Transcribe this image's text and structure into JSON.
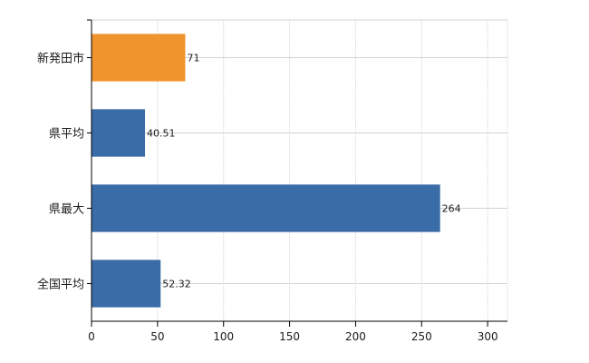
{
  "chart_data": {
    "type": "bar",
    "orientation": "horizontal",
    "categories": [
      "新発田市",
      "県平均",
      "県最大",
      "全国平均"
    ],
    "values": [
      71,
      40.51,
      264,
      52.32
    ],
    "data_labels": [
      "71",
      "40.51",
      "264",
      "52.32"
    ],
    "bar_colors": [
      "#f0952e",
      "#3a6ca8",
      "#3a6ca8",
      "#3a6ca8"
    ],
    "highlight_color": "#f0952e",
    "base_color": "#3a6ca8",
    "xlim": [
      0,
      315
    ],
    "x_ticks": [
      0,
      50,
      100,
      150,
      200,
      250,
      300
    ],
    "x_tick_labels": [
      "0",
      "50",
      "100",
      "150",
      "200",
      "250",
      "300"
    ],
    "grid": true,
    "legend": false,
    "title": "",
    "xlabel": "",
    "ylabel": ""
  }
}
